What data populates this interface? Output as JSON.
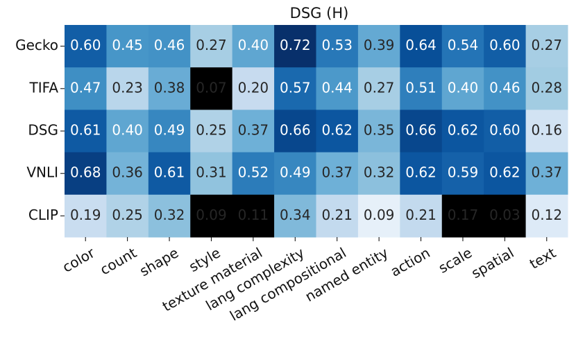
{
  "chart_data": {
    "type": "heatmap",
    "title": "DSG (H)",
    "rows": [
      "Gecko",
      "TIFA",
      "DSG",
      "VNLI",
      "CLIP"
    ],
    "categories": [
      "color",
      "count",
      "shape",
      "style",
      "texture material",
      "lang complexity",
      "lang compositional",
      "named entity",
      "action",
      "scale",
      "spatial",
      "text"
    ],
    "values": [
      [
        0.6,
        0.45,
        0.46,
        0.27,
        0.4,
        0.72,
        0.53,
        0.39,
        0.64,
        0.54,
        0.6,
        0.27
      ],
      [
        0.47,
        0.23,
        0.38,
        0.07,
        0.2,
        0.57,
        0.44,
        0.27,
        0.51,
        0.4,
        0.46,
        0.28
      ],
      [
        0.61,
        0.4,
        0.49,
        0.25,
        0.37,
        0.66,
        0.62,
        0.35,
        0.66,
        0.62,
        0.6,
        0.16
      ],
      [
        0.68,
        0.36,
        0.61,
        0.31,
        0.52,
        0.49,
        0.37,
        0.32,
        0.62,
        0.59,
        0.62,
        0.37
      ],
      [
        0.19,
        0.25,
        0.32,
        0.09,
        0.11,
        0.34,
        0.21,
        0.09,
        0.21,
        0.17,
        0.03,
        0.12
      ]
    ],
    "value_labels": [
      [
        "0.60",
        "0.45",
        "0.46",
        "0.27",
        "0.40",
        "0.72",
        "0.53",
        "0.39",
        "0.64",
        "0.54",
        "0.60",
        "0.27"
      ],
      [
        "0.47",
        "0.23",
        "0.38",
        "0.07",
        "0.20",
        "0.57",
        "0.44",
        "0.27",
        "0.51",
        "0.40",
        "0.46",
        "0.28"
      ],
      [
        "0.61",
        "0.40",
        "0.49",
        "0.25",
        "0.37",
        "0.66",
        "0.62",
        "0.35",
        "0.66",
        "0.62",
        "0.60",
        "0.16"
      ],
      [
        "0.68",
        "0.36",
        "0.61",
        "0.31",
        "0.52",
        "0.49",
        "0.37",
        "0.32",
        "0.62",
        "0.59",
        "0.62",
        "0.37"
      ],
      [
        "0.19",
        "0.25",
        "0.32",
        "0.09",
        "0.11",
        "0.34",
        "0.21",
        "0.09",
        "0.21",
        "0.17",
        "0.03",
        "0.12"
      ]
    ],
    "masked": [
      [
        false,
        false,
        false,
        false,
        false,
        false,
        false,
        false,
        false,
        false,
        false,
        false
      ],
      [
        false,
        false,
        false,
        true,
        false,
        false,
        false,
        false,
        false,
        false,
        false,
        false
      ],
      [
        false,
        false,
        false,
        false,
        false,
        false,
        false,
        false,
        false,
        false,
        false,
        false
      ],
      [
        false,
        false,
        false,
        false,
        false,
        false,
        false,
        false,
        false,
        false,
        false,
        false
      ],
      [
        false,
        false,
        false,
        true,
        true,
        false,
        false,
        false,
        false,
        true,
        true,
        false
      ]
    ],
    "colormap": "Blues",
    "color_range": [
      0.03,
      0.72
    ],
    "masked_color": "#000000"
  }
}
